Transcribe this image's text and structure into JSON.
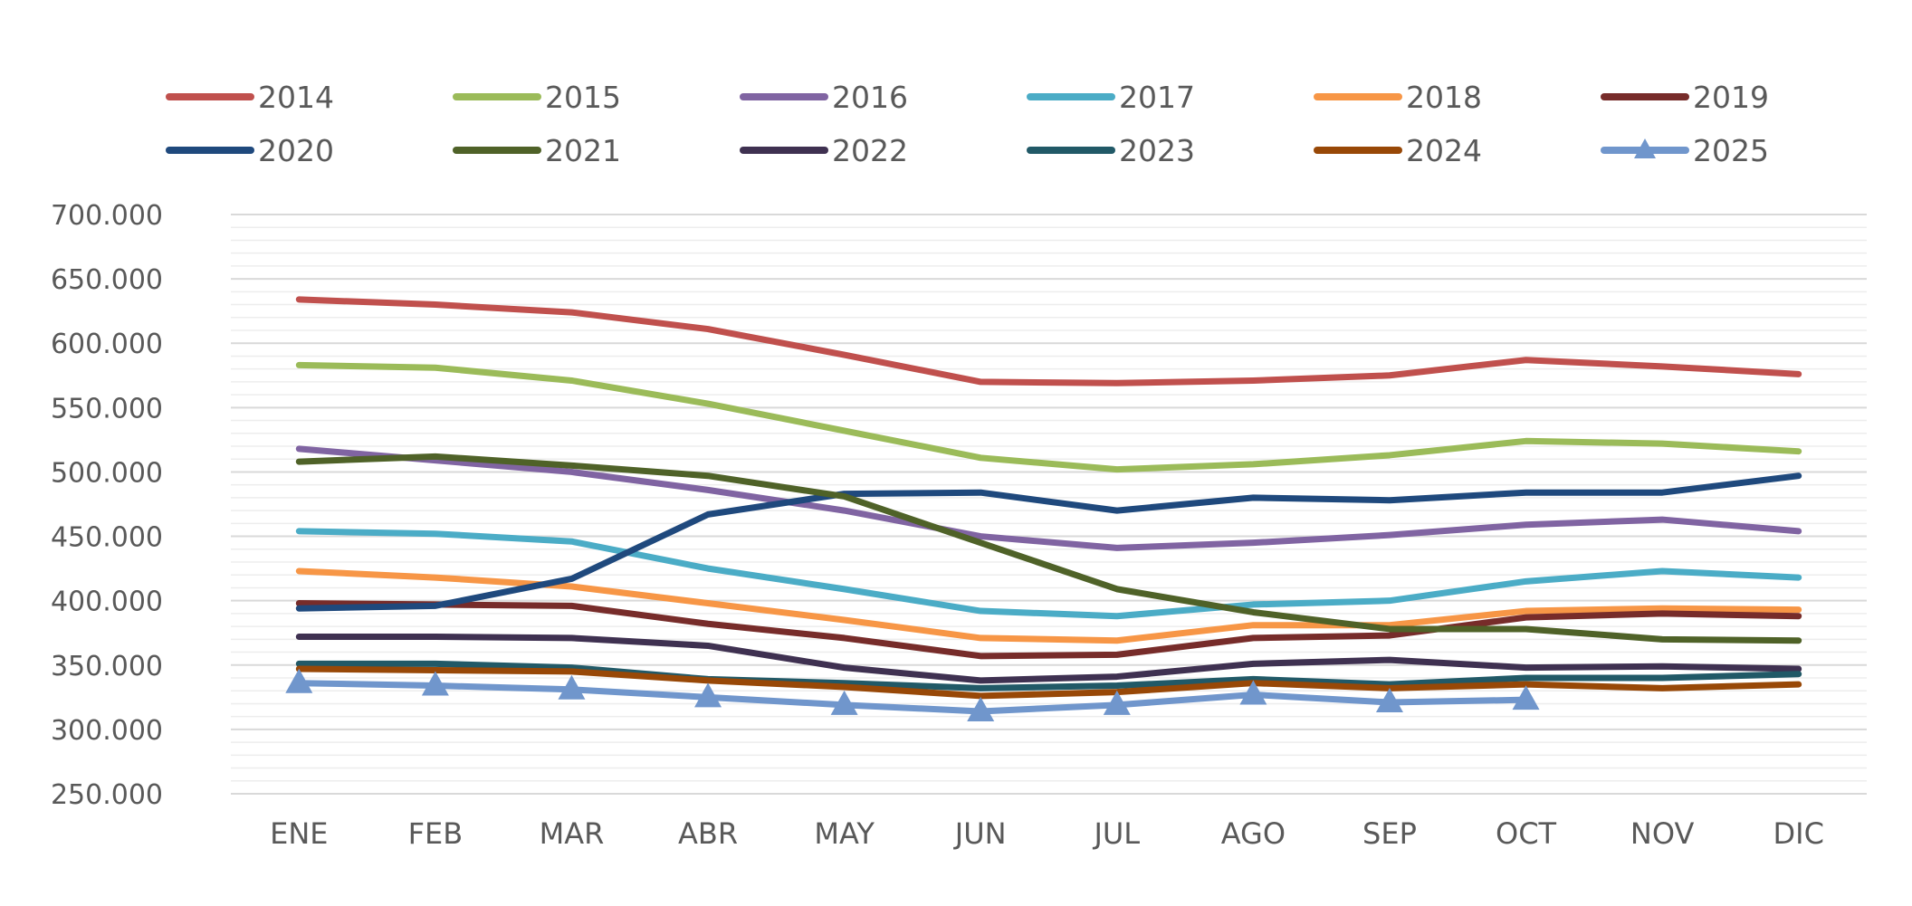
{
  "chart_data": {
    "type": "line",
    "title": "",
    "xlabel": "",
    "ylabel": "",
    "ylim": [
      250000,
      700000
    ],
    "yticks": [
      {
        "value": 250000,
        "label": "250.000"
      },
      {
        "value": 300000,
        "label": "300.000"
      },
      {
        "value": 350000,
        "label": "350.000"
      },
      {
        "value": 400000,
        "label": "400.000"
      },
      {
        "value": 450000,
        "label": "450.000"
      },
      {
        "value": 500000,
        "label": "500.000"
      },
      {
        "value": 550000,
        "label": "550.000"
      },
      {
        "value": 600000,
        "label": "600.000"
      },
      {
        "value": 650000,
        "label": "650.000"
      },
      {
        "value": 700000,
        "label": "700.000"
      }
    ],
    "categories": [
      "ENE",
      "FEB",
      "MAR",
      "ABR",
      "MAY",
      "JUN",
      "JUL",
      "AGO",
      "SEP",
      "OCT",
      "NOV",
      "DIC"
    ],
    "grid": true,
    "legend_position": "top",
    "series": [
      {
        "name": "2014",
        "color": "#C0504D",
        "marker": "none",
        "values": [
          634000,
          630000,
          624000,
          611000,
          591000,
          570000,
          569000,
          571000,
          575000,
          587000,
          582000,
          576000
        ]
      },
      {
        "name": "2015",
        "color": "#9BBB59",
        "marker": "none",
        "values": [
          583000,
          581000,
          571000,
          553000,
          532000,
          511000,
          502000,
          506000,
          513000,
          524000,
          522000,
          516000
        ]
      },
      {
        "name": "2016",
        "color": "#8064A2",
        "marker": "none",
        "values": [
          518000,
          509000,
          500000,
          486000,
          470000,
          450000,
          441000,
          445000,
          451000,
          459000,
          463000,
          454000
        ]
      },
      {
        "name": "2017",
        "color": "#4BACC6",
        "marker": "none",
        "values": [
          454000,
          452000,
          446000,
          425000,
          409000,
          392000,
          388000,
          397000,
          400000,
          415000,
          423000,
          418000
        ]
      },
      {
        "name": "2018",
        "color": "#F79646",
        "marker": "none",
        "values": [
          423000,
          418000,
          411000,
          398000,
          385000,
          371000,
          369000,
          381000,
          381000,
          392000,
          394000,
          393000
        ]
      },
      {
        "name": "2019",
        "color": "#772C2A",
        "marker": "none",
        "values": [
          398000,
          397000,
          396000,
          382000,
          371000,
          357000,
          358000,
          371000,
          373000,
          387000,
          390000,
          388000
        ]
      },
      {
        "name": "2020",
        "color": "#1F497D",
        "marker": "none",
        "values": [
          394000,
          396000,
          417000,
          467000,
          483000,
          484000,
          470000,
          480000,
          478000,
          484000,
          484000,
          497000
        ]
      },
      {
        "name": "2021",
        "color": "#4F6228",
        "marker": "none",
        "values": [
          508000,
          512000,
          505000,
          497000,
          481000,
          445000,
          409000,
          391000,
          378000,
          378000,
          370000,
          369000
        ]
      },
      {
        "name": "2022",
        "color": "#3F3151",
        "marker": "none",
        "values": [
          372000,
          372000,
          371000,
          365000,
          348000,
          338000,
          341000,
          351000,
          354000,
          348000,
          349000,
          347000
        ]
      },
      {
        "name": "2023",
        "color": "#215967",
        "marker": "none",
        "values": [
          351000,
          351000,
          348000,
          339000,
          336000,
          332000,
          334000,
          339000,
          335000,
          340000,
          340000,
          343000
        ]
      },
      {
        "name": "2024",
        "color": "#984807",
        "marker": "none",
        "values": [
          347000,
          346000,
          345000,
          338000,
          333000,
          326000,
          329000,
          336000,
          332000,
          335000,
          332000,
          335000
        ]
      },
      {
        "name": "2025",
        "color": "#7096CC",
        "marker": "triangle",
        "values": [
          336000,
          334000,
          331000,
          325000,
          319000,
          314000,
          319000,
          327000,
          321000,
          323000,
          null,
          null
        ]
      }
    ]
  }
}
